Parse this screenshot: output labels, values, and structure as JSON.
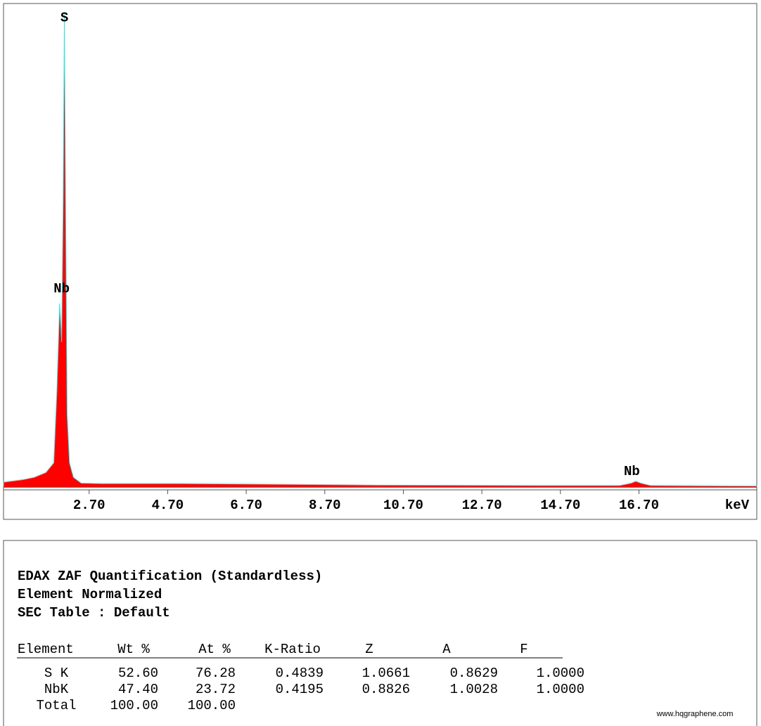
{
  "chart_data": {
    "type": "area",
    "xlabel": "keV",
    "x": [
      0.52,
      1.0,
      1.3,
      1.6,
      1.8,
      1.88,
      1.95,
      2.0,
      2.04,
      2.07,
      2.1,
      2.14,
      2.2,
      2.3,
      2.5,
      3.0,
      5.0,
      7.0,
      10.0,
      14.0,
      16.2,
      16.5,
      16.62,
      16.75,
      17.0,
      19.7
    ],
    "series": [
      {
        "color": "#ff0000",
        "values": [
          1,
          1.5,
          2,
          3,
          5,
          20,
          38,
          30,
          60,
          98,
          60,
          15,
          5,
          2,
          0.8,
          0.7,
          0.7,
          0.6,
          0.4,
          0.3,
          0.3,
          0.8,
          1.2,
          0.8,
          0.3,
          0.2
        ]
      }
    ],
    "annotations": [
      {
        "text": "S",
        "x": 2.07,
        "y": 97
      },
      {
        "text": "Nb",
        "x": 2.0,
        "y": 41
      },
      {
        "text": "Nb",
        "x": 16.52,
        "y": 3.2
      }
    ],
    "xlim": [
      0.52,
      19.7
    ],
    "ylim": [
      0,
      100
    ],
    "xticks": [
      {
        "value": 2.7,
        "label": "2.70"
      },
      {
        "value": 4.7,
        "label": "4.70"
      },
      {
        "value": 6.7,
        "label": "6.70"
      },
      {
        "value": 8.7,
        "label": "8.70"
      },
      {
        "value": 10.7,
        "label": "10.70"
      },
      {
        "value": 12.7,
        "label": "12.70"
      },
      {
        "value": 14.7,
        "label": "14.70"
      },
      {
        "value": 16.7,
        "label": "16.70"
      }
    ]
  },
  "report": {
    "lines": [
      "EDAX ZAF Quantification (Standardless)",
      "Element Normalized",
      "SEC Table : Default"
    ],
    "table": {
      "columns": [
        "Element",
        "Wt %",
        "At %",
        "K-Ratio",
        "Z",
        "A",
        "F"
      ],
      "rows": [
        [
          "S K",
          "52.60",
          "76.28",
          "0.4839",
          "1.0661",
          "0.8629",
          "1.0000"
        ],
        [
          "NbK",
          "47.40",
          "23.72",
          "0.4195",
          "0.8826",
          "1.0028",
          "1.0000"
        ],
        [
          "Total",
          "100.00",
          "100.00"
        ]
      ]
    },
    "watermark": "www.hqgraphene.com"
  }
}
